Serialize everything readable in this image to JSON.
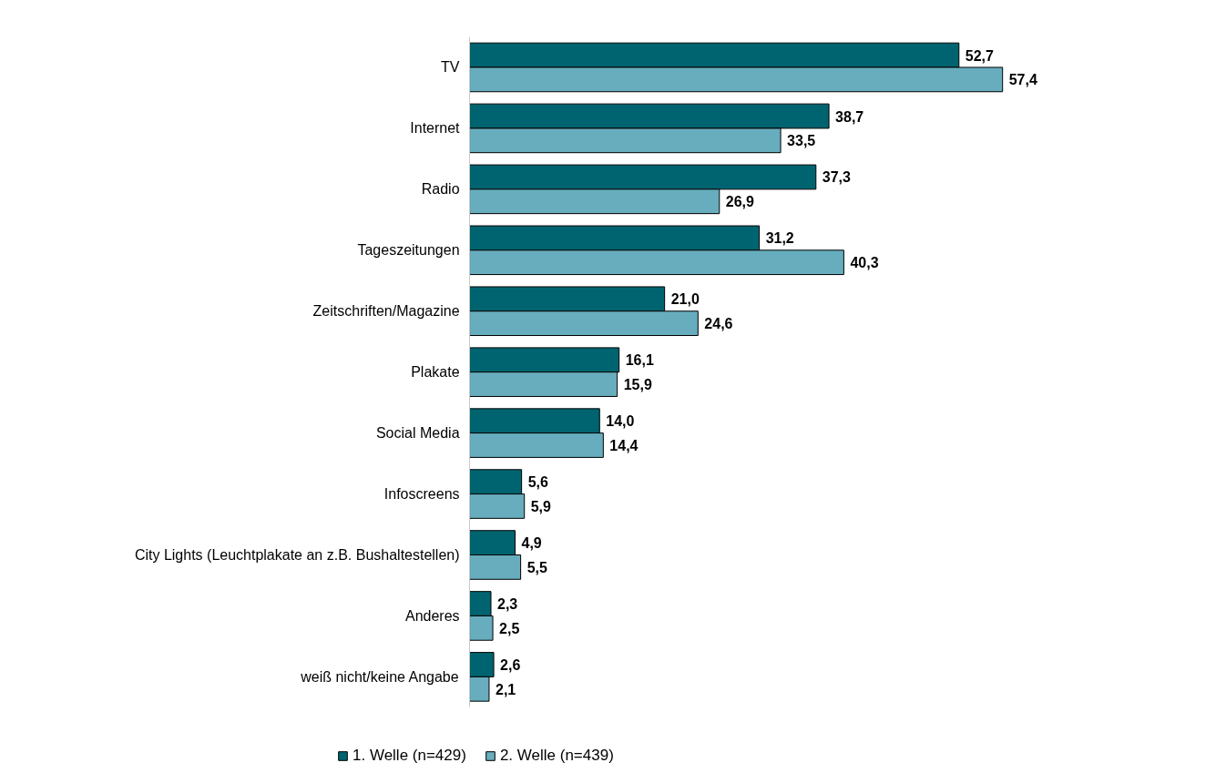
{
  "chart_data": {
    "type": "bar",
    "orientation": "horizontal",
    "categories": [
      "TV",
      "Internet",
      "Radio",
      "Tageszeitungen",
      "Zeitschriften/Magazine",
      "Plakate",
      "Social Media",
      "Infoscreens",
      "City Lights (Leuchtplakate an z.B. Bushaltestellen)",
      "Anderes",
      "weiß nicht/keine Angabe"
    ],
    "series": [
      {
        "name": "1. Welle (n=429)",
        "color": "#006470",
        "values": [
          52.7,
          38.7,
          37.3,
          31.2,
          21.0,
          16.1,
          14.0,
          5.6,
          4.9,
          2.3,
          2.6
        ],
        "value_labels": [
          "52,7",
          "38,7",
          "37,3",
          "31,2",
          "21,0",
          "16,1",
          "14,0",
          "5,6",
          "4,9",
          "2,3",
          "2,6"
        ]
      },
      {
        "name": "2. Welle (n=439)",
        "color": "#67adbd",
        "values": [
          57.4,
          33.5,
          26.9,
          40.3,
          24.6,
          15.9,
          14.4,
          5.9,
          5.5,
          2.5,
          2.1
        ],
        "value_labels": [
          "57,4",
          "33,5",
          "26,9",
          "40,3",
          "24,6",
          "15,9",
          "14,4",
          "5,9",
          "5,5",
          "2,5",
          "2,1"
        ]
      }
    ],
    "legend": "bottom",
    "grid": false
  }
}
